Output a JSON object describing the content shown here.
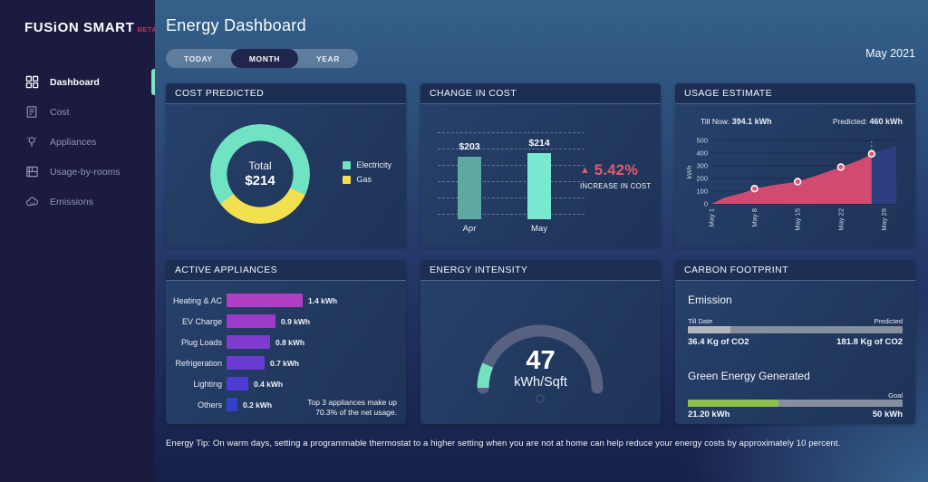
{
  "colors": {
    "electricity": "#6fe3c2",
    "gas": "#f2e04e",
    "bar_apr": "#5fa9a3",
    "bar_may": "#79ead0",
    "accent_red": "#e25b6e",
    "area_actual": "#d14a70",
    "area_predicted": "#2d3f7e",
    "marker_fill": "#e8506a",
    "gauge_track": "#596180",
    "gauge_fill": "#72e2c0",
    "progress_track": "#878e9d",
    "emission_fill": "#b2b6bf",
    "green_fill": "#8dbf4c",
    "sidebar_active_pip": "#7fe5c5"
  },
  "sidebar": {
    "logo_text": "FUSiON SMART",
    "logo_badge": "BETA",
    "items": [
      {
        "label": "Dashboard",
        "icon": "dashboard-icon",
        "active": true
      },
      {
        "label": "Cost",
        "icon": "cost-icon",
        "active": false
      },
      {
        "label": "Appliances",
        "icon": "appliances-icon",
        "active": false
      },
      {
        "label": "Usage-by-rooms",
        "icon": "usage-by-rooms-icon",
        "active": false
      },
      {
        "label": "Emissions",
        "icon": "emissions-icon",
        "active": false
      }
    ]
  },
  "header": {
    "title": "Energy Dashboard",
    "tabs": [
      {
        "label": "TODAY",
        "active": false
      },
      {
        "label": "MONTH",
        "active": true
      },
      {
        "label": "YEAR",
        "active": false
      }
    ],
    "period": "May 2021"
  },
  "cost_predicted": {
    "title": "COST PREDICTED",
    "center_label": "Total",
    "center_value": "$214",
    "legend": [
      {
        "label": "Electricity",
        "color": "#6fe3c2"
      },
      {
        "label": "Gas",
        "color": "#f2e04e"
      }
    ],
    "chart_data": {
      "type": "pie",
      "donut": true,
      "segments": [
        {
          "label": "Electricity",
          "percent": 67,
          "color": "#6fe3c2"
        },
        {
          "label": "Gas",
          "percent": 33,
          "color": "#f2e04e"
        }
      ],
      "gas_start_deg": 115,
      "gas_end_deg": 233,
      "total_label": "Total $214"
    }
  },
  "change_in_cost": {
    "title": "CHANGE IN COST",
    "chart_data": {
      "type": "bar",
      "categories": [
        "Apr",
        "May"
      ],
      "values": [
        203,
        214
      ],
      "value_labels": [
        "$203",
        "$214"
      ],
      "colors": [
        "#5fa9a3",
        "#79ead0"
      ],
      "ylim": [
        0,
        260
      ],
      "grid": "dashed"
    },
    "delta": {
      "percent": "5.42%",
      "note": "INCREASE IN COST",
      "direction": "up"
    }
  },
  "usage_estimate": {
    "title": "USAGE ESTIMATE",
    "till_now_label": "Till Now:",
    "till_now_value": "394.1 kWh",
    "predicted_label": "Predicted:",
    "predicted_value": "460 kWh",
    "chart_data": {
      "type": "area",
      "ylabel": "kWh",
      "yticks": [
        0,
        100,
        200,
        300,
        400,
        500
      ],
      "ylim": [
        0,
        500
      ],
      "xticks": [
        {
          "day": 1,
          "label": "May 1"
        },
        {
          "day": 8,
          "label": "May 8"
        },
        {
          "day": 15,
          "label": "May 15"
        },
        {
          "day": 22,
          "label": "May 22"
        },
        {
          "day": 29,
          "label": "May 29"
        }
      ],
      "xlim": [
        1,
        31
      ],
      "series": [
        {
          "name": "actual",
          "color": "#d14a70",
          "points": [
            [
              1,
              0
            ],
            [
              2,
              22
            ],
            [
              3,
              46
            ],
            [
              4,
              60
            ],
            [
              5,
              72
            ],
            [
              6,
              84
            ],
            [
              8,
              120
            ],
            [
              11,
              147
            ],
            [
              15,
              175
            ],
            [
              18,
              222
            ],
            [
              22,
              290
            ],
            [
              25,
              344
            ],
            [
              27,
              394
            ]
          ]
        },
        {
          "name": "predicted",
          "color": "#2d3f7e",
          "points": [
            [
              27,
              394
            ],
            [
              31,
              460
            ]
          ]
        }
      ],
      "markers": [
        [
          8,
          120
        ],
        [
          15,
          175
        ],
        [
          22,
          290
        ],
        [
          27,
          394
        ]
      ]
    }
  },
  "active_appliances": {
    "title": "ACTIVE APPLIANCES",
    "chart_data": {
      "type": "bar",
      "orientation": "horizontal",
      "categories": [
        "Heating & AC",
        "EV Charge",
        "Plug Loads",
        "Refrigeration",
        "Lighting",
        "Others"
      ],
      "values": [
        1.4,
        0.9,
        0.8,
        0.7,
        0.4,
        0.2
      ],
      "value_labels": [
        "1.4 kWh",
        "0.9 kWh",
        "0.8 kWh",
        "0.7 kWh",
        "0.4 kWh",
        "0.2 kWh"
      ],
      "colors": [
        "#b23ec6",
        "#9c3bca",
        "#7e3bce",
        "#6a3bd0",
        "#4f3bd4",
        "#3340c9"
      ],
      "xlim": [
        0,
        1.5
      ]
    },
    "note": "Top 3 appliances make up 70.3% of the net usage."
  },
  "energy_intensity": {
    "title": "ENERGY INTENSITY",
    "value": "47",
    "unit": "kWh/Sqft",
    "chart_data": {
      "type": "gauge",
      "value": 47,
      "fill_percent": 13,
      "fill_color": "#72e2c0",
      "track_color": "#596180"
    }
  },
  "carbon_footprint": {
    "title": "CARBON FOOTPRINT",
    "emission": {
      "heading": "Emission",
      "left_label": "Till Date",
      "right_label": "Predicted",
      "left_value": "36.4 Kg of CO2",
      "right_value": "181.8 Kg of CO2",
      "percent": 20,
      "fill_color": "#b2b6bf"
    },
    "green": {
      "heading": "Green Energy Generated",
      "right_label": "Goal",
      "left_value": "21.20 kWh",
      "right_value": "50 kWh",
      "percent": 42.4,
      "fill_color": "#8dbf4c"
    }
  },
  "tip": "Energy Tip: On warm days, setting a programmable thermostat to a higher setting when you are not at home can help reduce your energy costs by approximately 10 percent."
}
